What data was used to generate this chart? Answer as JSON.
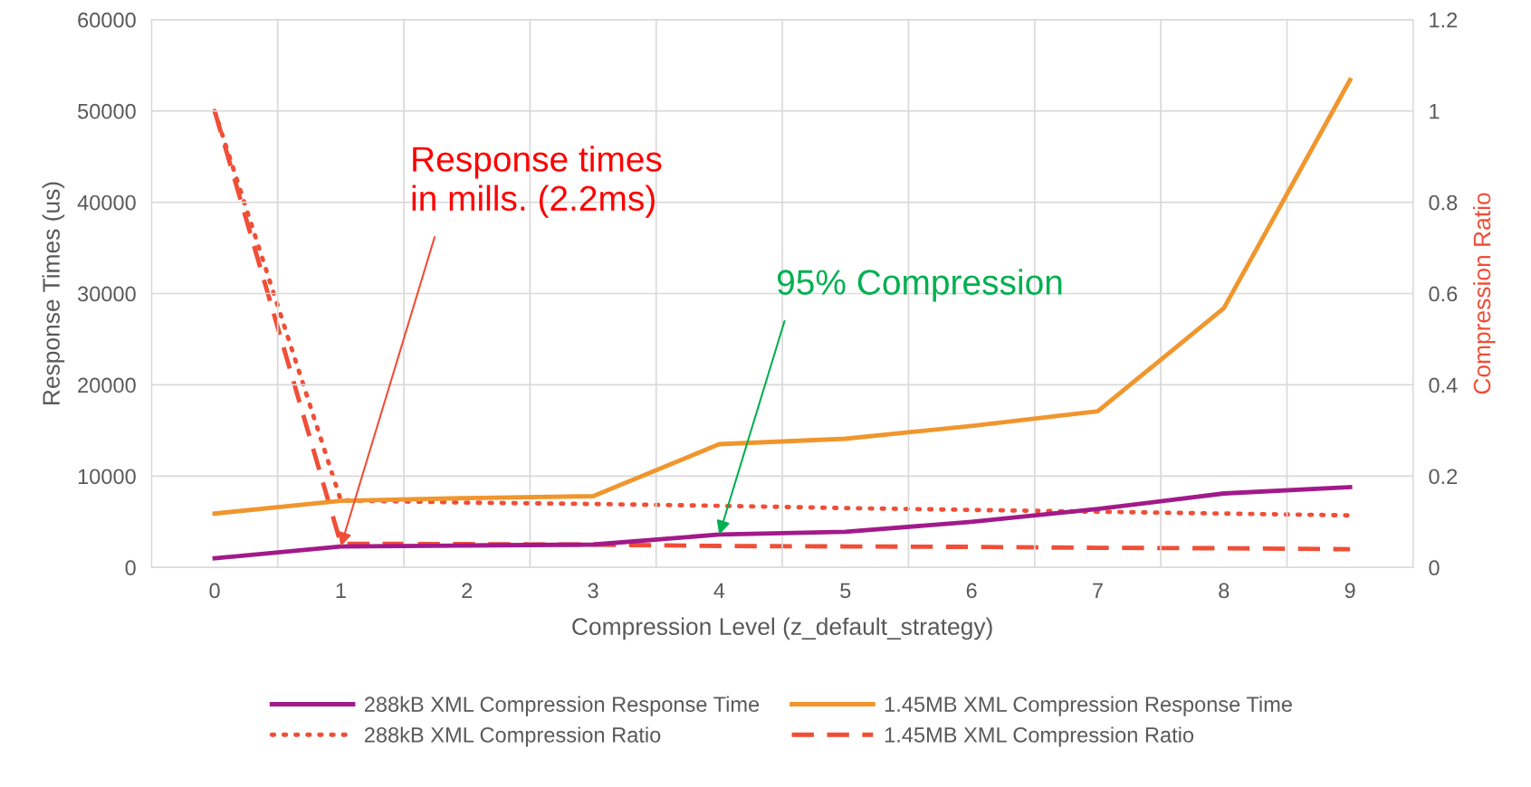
{
  "chart_data": {
    "type": "line",
    "xlabel": "Compression Level (z_default_strategy)",
    "ylabel": "Response Times (us)",
    "y2label": "Compression Ratio",
    "categories": [
      "0",
      "1",
      "2",
      "3",
      "4",
      "5",
      "6",
      "7",
      "8",
      "9"
    ],
    "series": [
      {
        "name": "288kB XML Compression Response Time",
        "color": "#a21a8a",
        "line_style": "solid",
        "values": [
          1000,
          2300,
          2400,
          2500,
          3600,
          3900,
          5000,
          6400,
          8100,
          8800
        ]
      },
      {
        "name": "1.45MB XML Compression Response Time",
        "color": "#f0962d",
        "line_style": "solid",
        "values": [
          5900,
          7300,
          7600,
          7800,
          13500,
          14100,
          15500,
          17100,
          28400,
          53400
        ]
      },
      {
        "name": "288kB XML Compression Ratio",
        "color": "#f04e37",
        "line_style": "dotted",
        "axis": "y2",
        "values": [
          1.0,
          0.147,
          0.142,
          0.139,
          0.135,
          0.13,
          0.126,
          0.122,
          0.118,
          0.114
        ]
      },
      {
        "name": "1.45MB XML Compression Ratio",
        "color": "#f04e37",
        "line_style": "dashed",
        "axis": "y2",
        "values": [
          1.0,
          0.052,
          0.051,
          0.05,
          0.047,
          0.046,
          0.045,
          0.043,
          0.042,
          0.04
        ]
      }
    ],
    "ylim": [
      0,
      60000
    ],
    "yticks": [
      0,
      10000,
      20000,
      30000,
      40000,
      50000,
      60000
    ],
    "y2lim": [
      0,
      1.2
    ],
    "y2ticks": [
      0,
      0.2,
      0.4,
      0.6,
      0.8,
      1,
      1.2
    ],
    "grid": true,
    "legend": "bottom",
    "marker": "none",
    "annotations": [
      {
        "text": "Response times\nin mills. (2.2ms)",
        "x": "1",
        "y": 2300
      },
      {
        "text": "95% Compression",
        "x": "4",
        "y": 3600
      }
    ]
  }
}
